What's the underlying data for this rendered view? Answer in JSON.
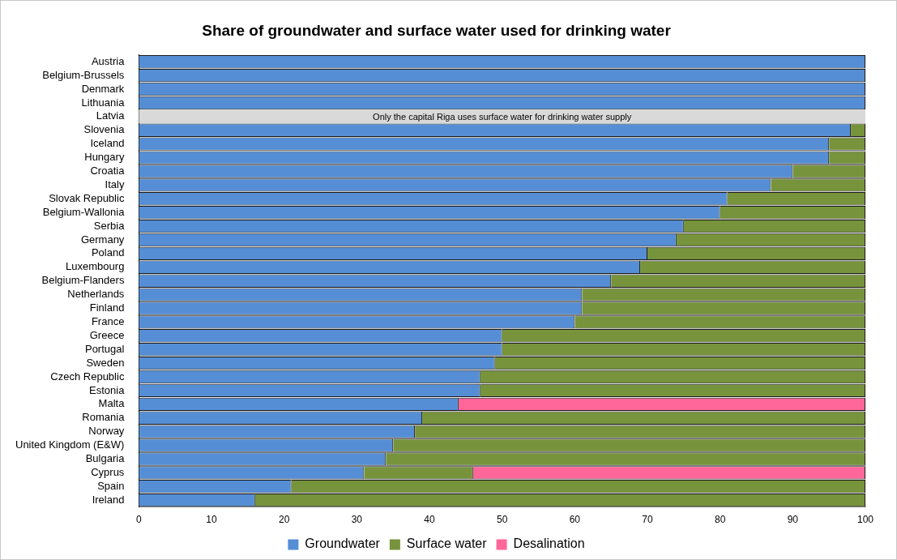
{
  "chart_data": {
    "type": "bar",
    "orientation": "horizontal",
    "stacked": true,
    "title": "Share of groundwater and surface water used for drinking water",
    "categories": [
      "Austria",
      "Belgium-Brussels",
      "Denmark",
      "Lithuania",
      "Latvia",
      "Slovenia",
      "Iceland",
      "Hungary",
      "Croatia",
      "Italy",
      "Slovak Republic",
      "Belgium-Wallonia",
      "Serbia",
      "Germany",
      "Poland",
      "Luxembourg",
      "Belgium-Flanders",
      "Netherlands",
      "Finland",
      "France",
      "Greece",
      "Portugal",
      "Sweden",
      "Czech Republic",
      "Estonia",
      "Malta",
      "Romania",
      "Norway",
      "United Kingdom (E&W)",
      "Bulgaria",
      "Cyprus",
      "Spain",
      "Ireland"
    ],
    "series": [
      {
        "name": "Groundwater",
        "color": "#558ed5",
        "values": [
          100,
          100,
          100,
          100,
          null,
          98,
          95,
          95,
          90,
          87,
          81,
          80,
          75,
          74,
          70,
          69,
          65,
          61,
          61,
          60,
          50,
          50,
          49,
          47,
          47,
          44,
          39,
          38,
          35,
          34,
          31,
          21,
          16
        ]
      },
      {
        "name": "Surface water",
        "color": "#77933c",
        "values": [
          0,
          0,
          0,
          0,
          null,
          2,
          5,
          5,
          10,
          13,
          19,
          20,
          25,
          26,
          30,
          31,
          35,
          39,
          39,
          40,
          50,
          50,
          51,
          53,
          53,
          0,
          61,
          62,
          65,
          66,
          15,
          79,
          84
        ]
      },
      {
        "name": "Desalination",
        "color": "#ff6699",
        "values": [
          0,
          0,
          0,
          0,
          null,
          0,
          0,
          0,
          0,
          0,
          0,
          0,
          0,
          0,
          0,
          0,
          0,
          0,
          0,
          0,
          0,
          0,
          0,
          0,
          0,
          56,
          0,
          0,
          0,
          0,
          54,
          0,
          0
        ]
      }
    ],
    "xlim": [
      0,
      100
    ],
    "xticks": [
      0,
      10,
      20,
      30,
      40,
      50,
      60,
      70,
      80,
      90,
      100
    ],
    "bands": [
      {
        "axis": "y",
        "from": "Latvia",
        "to": "Latvia",
        "color": "#d9d9d9",
        "label": "Only the capital Riga uses surface water for drinking water supply"
      }
    ],
    "grid": false,
    "legend": "bottom"
  }
}
